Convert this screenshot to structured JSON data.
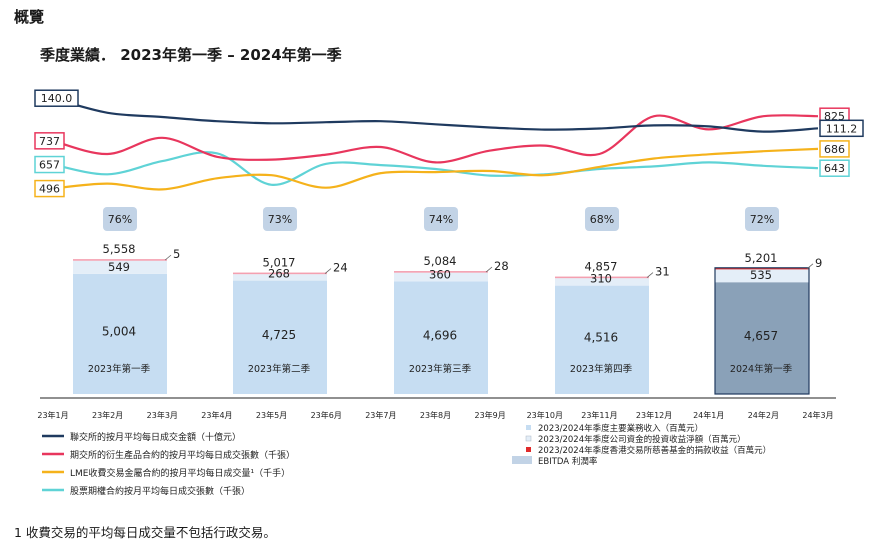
{
  "page": {
    "heading": "概覽",
    "subtitle": "季度業績． 2023年第一季 – 2024年第一季",
    "footnote": "1 收費交易的平均每日成交量不包括行政交易。"
  },
  "colors": {
    "navy": "#1f3a5f",
    "pink": "#e8365d",
    "orange": "#f5b21b",
    "cyan": "#5fd3d6",
    "bar_light": "#c6ddf2",
    "bar_dark": "#8aa1b8",
    "seg_mid": "#e4eef8",
    "seg_red": "#e02a2a",
    "pct_box": "#c2d3e6"
  },
  "chart_data": {
    "type": "bar",
    "x_labels": [
      "23年1月",
      "23年2月",
      "23年3月",
      "23年4月",
      "23年5月",
      "23年6月",
      "23年7月",
      "23年8月",
      "23年9月",
      "23年10月",
      "23年11月",
      "23年12月",
      "24年1月",
      "24年2月",
      "24年3月"
    ],
    "lines": [
      {
        "name": "聯交所的按月平均每日成交金額（十億元）",
        "color": "navy",
        "start_label": "140.0",
        "end_label": "111.2",
        "values": [
          140.0,
          126,
          122,
          118,
          116,
          117,
          118,
          115,
          112,
          110,
          111,
          114,
          113,
          108,
          111.2
        ]
      },
      {
        "name": "期交所的衍生產品合約按月平均每日成交張數（千張）",
        "color": "pink",
        "start_label": "737",
        "end_label": "825",
        "values": [
          737,
          690,
          748,
          680,
          670,
          688,
          715,
          660,
          702,
          720,
          690,
          825,
          778,
          825,
          825
        ]
      },
      {
        "name": "LME收費交易金屬合約的按月平均每日成交量¹（千手）",
        "color": "orange",
        "start_label": "496",
        "end_label": "686",
        "values": [
          496,
          520,
          492,
          545,
          560,
          500,
          570,
          575,
          580,
          560,
          600,
          640,
          660,
          675,
          686
        ]
      },
      {
        "name": "股票期權合約按月平均每日成交張數（千張）",
        "color": "cyan",
        "start_label": "657",
        "end_label": "643",
        "values": [
          657,
          620,
          670,
          700,
          580,
          660,
          655,
          640,
          615,
          620,
          640,
          650,
          665,
          652,
          643
        ]
      }
    ],
    "quarters": [
      {
        "label": "2023年第一季",
        "total": "5,558",
        "main": 5004,
        "main_label": "5,004",
        "invest": 549,
        "invest_label": "549",
        "donation": 5,
        "donation_label": "5",
        "ebitda": "76%",
        "highlight": false
      },
      {
        "label": "2023年第二季",
        "total": "5,017",
        "main": 4725,
        "main_label": "4,725",
        "invest": 268,
        "invest_label": "268",
        "donation": 24,
        "donation_label": "24",
        "ebitda": "73%",
        "highlight": false
      },
      {
        "label": "2023年第三季",
        "total": "5,084",
        "main": 4696,
        "main_label": "4,696",
        "invest": 360,
        "invest_label": "360",
        "donation": 28,
        "donation_label": "28",
        "ebitda": "74%",
        "highlight": false
      },
      {
        "label": "2023年第四季",
        "total": "4,857",
        "main": 4516,
        "main_label": "4,516",
        "invest": 310,
        "invest_label": "310",
        "donation": 31,
        "donation_label": "31",
        "ebitda": "68%",
        "highlight": false
      },
      {
        "label": "2024年第一季",
        "total": "5,201",
        "main": 4657,
        "main_label": "4,657",
        "invest": 535,
        "invest_label": "535",
        "donation": 9,
        "donation_label": "9",
        "ebitda": "72%",
        "highlight": true
      }
    ],
    "legend_left": [
      {
        "text": "聯交所的按月平均每日成交金額（十億元）",
        "color": "navy"
      },
      {
        "text": "期交所的衍生產品合約的按月平均每日成交張數（千張）",
        "color": "pink"
      },
      {
        "text": "LME收費交易金屬合約的按月平均每日成交量¹（千手）",
        "color": "orange"
      },
      {
        "text": "股票期權合約按月平均每日成交張數（千張）",
        "color": "cyan"
      }
    ],
    "legend_right": [
      {
        "text": "2023/2024年季度主要業務收入（百萬元）",
        "color": "bar_light"
      },
      {
        "text": "2023/2024年季度公司資金的投資收益淨額（百萬元）",
        "color": "seg_mid"
      },
      {
        "text": "2023/2024年季度香港交易所慈善基金的捐款收益（百萬元）",
        "color": "seg_red"
      },
      {
        "text": "EBITDA 利潤率",
        "color": "pct_box"
      }
    ]
  }
}
